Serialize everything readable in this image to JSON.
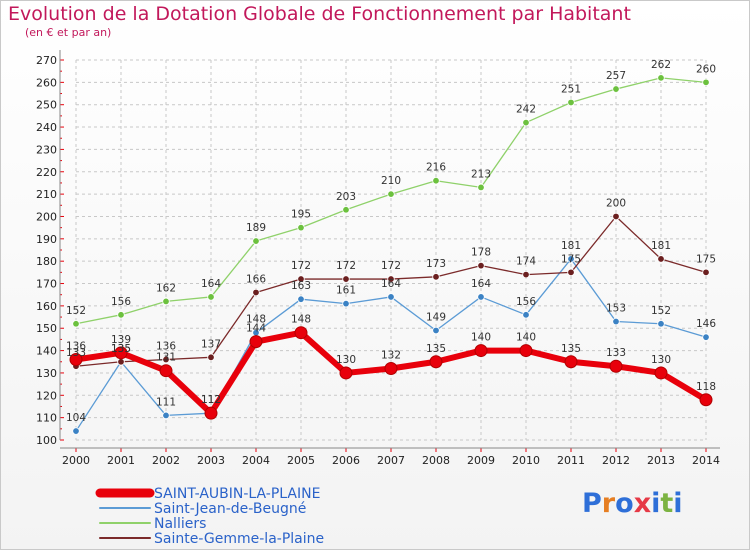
{
  "title": "Evolution de la Dotation Globale de Fonctionnement par Habitant",
  "subtitle": "(en € et par an)",
  "logo": {
    "text": "Proxiti",
    "letters": [
      "P",
      "r",
      "o",
      "x",
      "i",
      "t",
      "i"
    ],
    "colors": [
      "#2e6fd8",
      "#e67e22",
      "#2e6fd8",
      "#e63946",
      "#2e6fd8",
      "#7cb342",
      "#2e6fd8"
    ]
  },
  "chart_data": {
    "type": "line",
    "title": "Evolution de la Dotation Globale de Fonctionnement par Habitant",
    "subtitle": "(en € et par an)",
    "xlabel": "",
    "ylabel": "",
    "x": [
      "2000",
      "2001",
      "2002",
      "2003",
      "2004",
      "2005",
      "2006",
      "2007",
      "2008",
      "2009",
      "2010",
      "2011",
      "2012",
      "2013",
      "2014"
    ],
    "ylim": [
      100,
      270
    ],
    "yticks": [
      "100",
      "110",
      "120",
      "130",
      "140",
      "150",
      "160",
      "170",
      "180",
      "190",
      "200",
      "210",
      "220",
      "230",
      "240",
      "250",
      "260",
      "270"
    ],
    "grid": true,
    "legend_position": "bottom-left",
    "series": [
      {
        "name": "SAINT-AUBIN-LA-PLAINE",
        "color": "#e8000b",
        "marker_color": "#e8000b",
        "values": [
          136,
          139,
          131,
          112,
          144,
          148,
          130,
          132,
          135,
          140,
          140,
          135,
          133,
          130,
          118
        ],
        "labels": [
          "136",
          "139",
          "131",
          "112",
          "144",
          "148",
          "130",
          "132",
          "135",
          "140",
          "140",
          "135",
          "133",
          "130",
          "118"
        ]
      },
      {
        "name": "Saint-Jean-de-Beugné",
        "color": "#5b9bd5",
        "marker_color": "#3b82c4",
        "values": [
          104,
          135,
          111,
          112,
          148,
          163,
          161,
          164,
          149,
          164,
          156,
          181,
          153,
          152,
          146
        ],
        "labels": [
          "104",
          "135",
          "111",
          "112",
          "148",
          "163",
          "161",
          "164",
          "149",
          "164",
          "156",
          "181",
          "153",
          "152",
          "146"
        ]
      },
      {
        "name": "Nalliers",
        "color": "#8fd16a",
        "marker_color": "#6cc13e",
        "values": [
          152,
          156,
          162,
          164,
          189,
          195,
          203,
          210,
          216,
          213,
          242,
          251,
          257,
          262,
          260
        ],
        "labels": [
          "152",
          "156",
          "162",
          "164",
          "189",
          "195",
          "203",
          "210",
          "216",
          "213",
          "242",
          "251",
          "257",
          "262",
          "260"
        ]
      },
      {
        "name": "Sainte-Gemme-la-Plaine",
        "color": "#7b2a2a",
        "marker_color": "#6b1f1f",
        "values": [
          133,
          135,
          136,
          137,
          166,
          172,
          172,
          172,
          173,
          178,
          174,
          175,
          200,
          181,
          175
        ],
        "labels": [
          "133",
          "135",
          "136",
          "137",
          "166",
          "172",
          "172",
          "172",
          "173",
          "178",
          "174",
          "175",
          "200",
          "181",
          "175"
        ]
      }
    ]
  }
}
